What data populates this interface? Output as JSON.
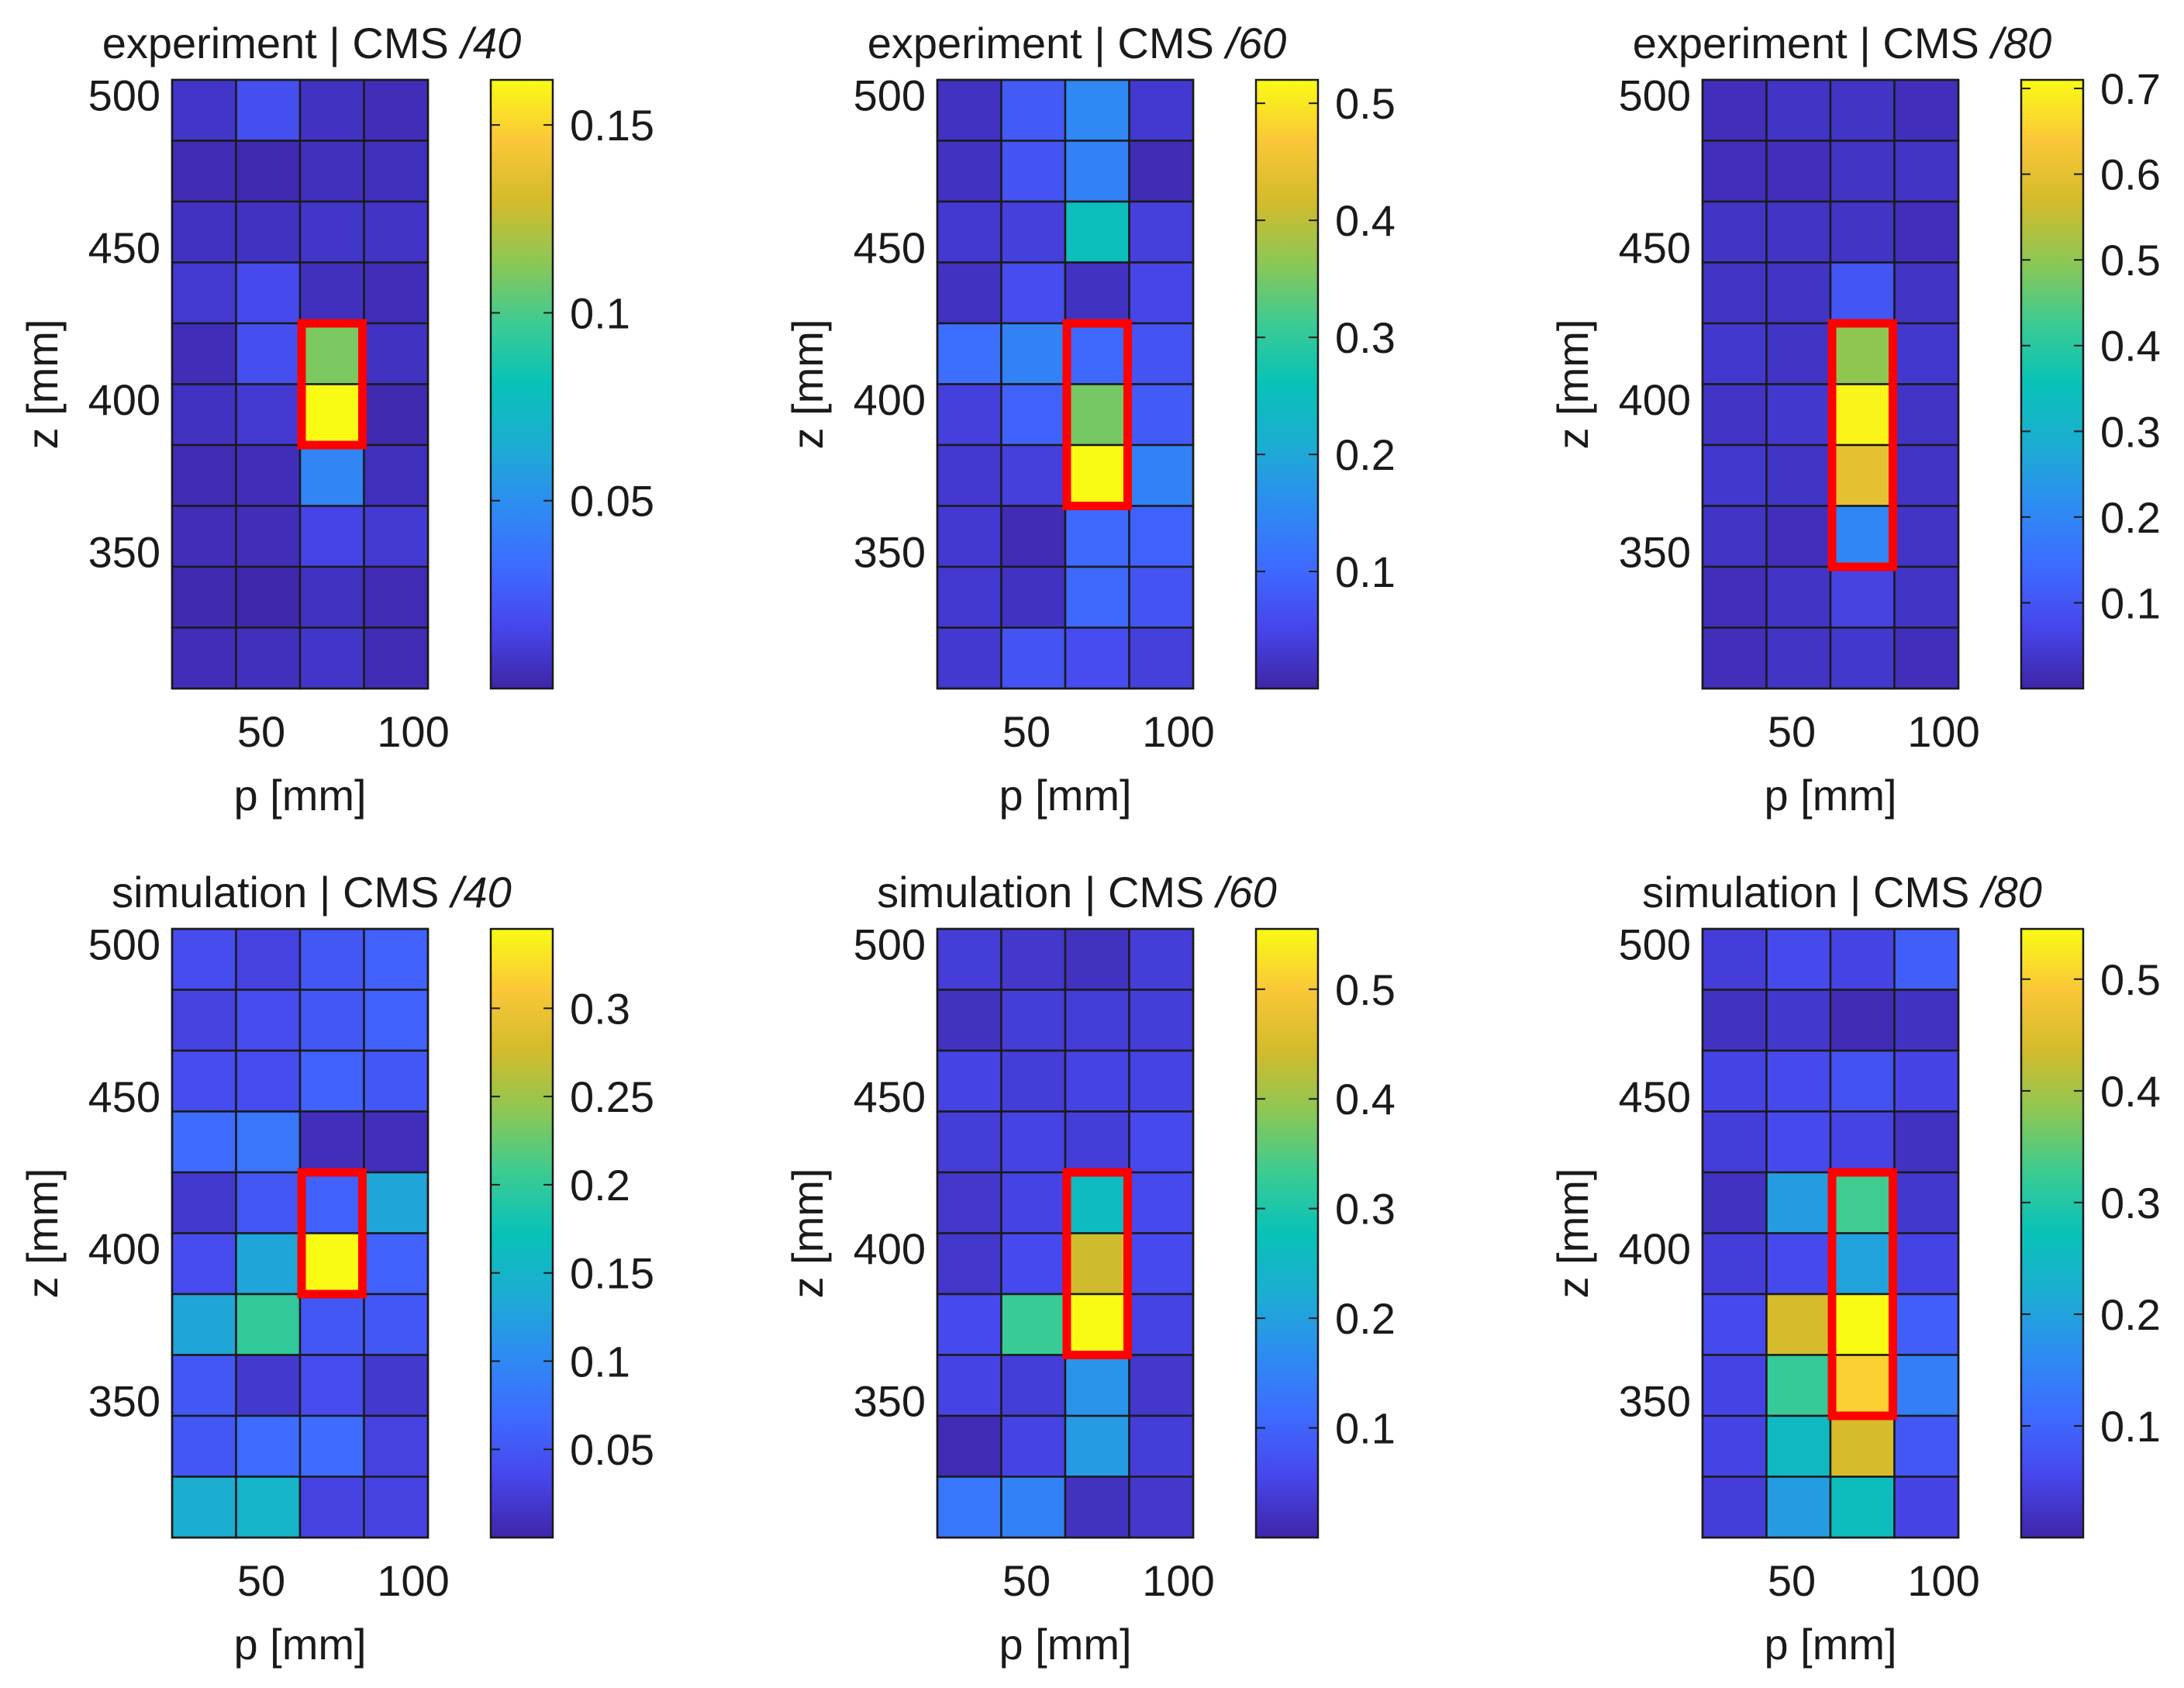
{
  "figure": {
    "colormap": [
      "#3e26a8",
      "#4746eb",
      "#3e6bff",
      "#2d8cf2",
      "#1cadd2",
      "#08c2b7",
      "#3ccb93",
      "#8cc754",
      "#d3bb2b",
      "#fac738",
      "#f9fb15"
    ],
    "highlight_color": "#ff0000",
    "grid_color": "#1a1a1a"
  },
  "chart_data": [
    {
      "type": "heatmap",
      "id": "exp40",
      "title": "experiment | CMS",
      "title_suffix": "/40",
      "xlabel": "p [mm]",
      "ylabel": "z [mm]",
      "x_ticks": [
        "50",
        "100"
      ],
      "y_ticks": [
        "500",
        "450",
        "400",
        "350"
      ],
      "cbar_ticks": [
        {
          "value": 0.15,
          "label": "0.15"
        },
        {
          "value": 0.1,
          "label": "0.1"
        },
        {
          "value": 0.05,
          "label": "0.05"
        }
      ],
      "clim": [
        0,
        0.162
      ],
      "highlight_rows": [
        4,
        5
      ],
      "values": [
        [
          0.008,
          0.02,
          0.006,
          0.004
        ],
        [
          0.003,
          0.002,
          0.005,
          0.005
        ],
        [
          0.006,
          0.006,
          0.008,
          0.007
        ],
        [
          0.01,
          0.018,
          0.005,
          0.004
        ],
        [
          0.004,
          0.02,
          0.11,
          0.006
        ],
        [
          0.006,
          0.01,
          0.162,
          0.002
        ],
        [
          0.003,
          0.004,
          0.045,
          0.005
        ],
        [
          0.004,
          0.004,
          0.015,
          0.01
        ],
        [
          0.002,
          0.001,
          0.006,
          0.003
        ],
        [
          0.004,
          0.005,
          0.008,
          0.003
        ]
      ]
    },
    {
      "type": "heatmap",
      "id": "exp60",
      "title": "experiment | CMS",
      "title_suffix": "/60",
      "xlabel": "p [mm]",
      "ylabel": "z [mm]",
      "x_ticks": [
        "50",
        "100"
      ],
      "y_ticks": [
        "500",
        "450",
        "400",
        "350"
      ],
      "cbar_ticks": [
        {
          "value": 0.5,
          "label": "0.5"
        },
        {
          "value": 0.4,
          "label": "0.4"
        },
        {
          "value": 0.3,
          "label": "0.3"
        },
        {
          "value": 0.2,
          "label": "0.2"
        },
        {
          "value": 0.1,
          "label": "0.1"
        }
      ],
      "clim": [
        0,
        0.52
      ],
      "highlight_rows": [
        4,
        5,
        6
      ],
      "values": [
        [
          0.02,
          0.08,
          0.15,
          0.03
        ],
        [
          0.02,
          0.07,
          0.14,
          0.01
        ],
        [
          0.03,
          0.04,
          0.25,
          0.04
        ],
        [
          0.02,
          0.06,
          0.02,
          0.05
        ],
        [
          0.11,
          0.14,
          0.1,
          0.07
        ],
        [
          0.04,
          0.09,
          0.35,
          0.08
        ],
        [
          0.03,
          0.04,
          0.52,
          0.14
        ],
        [
          0.03,
          0.01,
          0.1,
          0.09
        ],
        [
          0.03,
          0.02,
          0.1,
          0.07
        ],
        [
          0.03,
          0.07,
          0.06,
          0.04
        ]
      ]
    },
    {
      "type": "heatmap",
      "id": "exp80",
      "title": "experiment | CMS",
      "title_suffix": "/80",
      "xlabel": "p [mm]",
      "ylabel": "z [mm]",
      "x_ticks": [
        "50",
        "100"
      ],
      "y_ticks": [
        "500",
        "450",
        "400",
        "350"
      ],
      "cbar_ticks": [
        {
          "value": 0.7,
          "label": "0.7"
        },
        {
          "value": 0.6,
          "label": "0.6"
        },
        {
          "value": 0.5,
          "label": "0.5"
        },
        {
          "value": 0.4,
          "label": "0.4"
        },
        {
          "value": 0.3,
          "label": "0.3"
        },
        {
          "value": 0.2,
          "label": "0.2"
        },
        {
          "value": 0.1,
          "label": "0.1"
        }
      ],
      "clim": [
        0,
        0.71
      ],
      "highlight_rows": [
        4,
        5,
        6,
        7
      ],
      "values": [
        [
          0.02,
          0.03,
          0.03,
          0.02
        ],
        [
          0.02,
          0.02,
          0.03,
          0.03
        ],
        [
          0.03,
          0.03,
          0.03,
          0.02
        ],
        [
          0.03,
          0.03,
          0.1,
          0.03
        ],
        [
          0.04,
          0.03,
          0.5,
          0.04
        ],
        [
          0.03,
          0.04,
          0.7,
          0.03
        ],
        [
          0.04,
          0.03,
          0.6,
          0.03
        ],
        [
          0.03,
          0.02,
          0.2,
          0.03
        ],
        [
          0.02,
          0.03,
          0.06,
          0.03
        ],
        [
          0.02,
          0.03,
          0.04,
          0.02
        ]
      ]
    },
    {
      "type": "heatmap",
      "id": "sim40",
      "title": "simulation | CMS",
      "title_suffix": "/40",
      "xlabel": "p [mm]",
      "ylabel": "z [mm]",
      "x_ticks": [
        "50",
        "100"
      ],
      "y_ticks": [
        "500",
        "450",
        "400",
        "350"
      ],
      "cbar_ticks": [
        {
          "value": 0.3,
          "label": "0.3"
        },
        {
          "value": 0.25,
          "label": "0.25"
        },
        {
          "value": 0.2,
          "label": "0.2"
        },
        {
          "value": 0.15,
          "label": "0.15"
        },
        {
          "value": 0.1,
          "label": "0.1"
        },
        {
          "value": 0.05,
          "label": "0.05"
        }
      ],
      "clim": [
        0,
        0.345
      ],
      "highlight_rows": [
        4,
        5
      ],
      "values": [
        [
          0.04,
          0.03,
          0.05,
          0.06
        ],
        [
          0.03,
          0.04,
          0.05,
          0.06
        ],
        [
          0.04,
          0.04,
          0.06,
          0.05
        ],
        [
          0.07,
          0.08,
          0.01,
          0.01
        ],
        [
          0.02,
          0.05,
          0.06,
          0.13
        ],
        [
          0.04,
          0.13,
          0.345,
          0.06
        ],
        [
          0.13,
          0.2,
          0.05,
          0.05
        ],
        [
          0.05,
          0.02,
          0.04,
          0.02
        ],
        [
          0.05,
          0.07,
          0.07,
          0.03
        ],
        [
          0.14,
          0.15,
          0.03,
          0.03
        ]
      ]
    },
    {
      "type": "heatmap",
      "id": "sim60",
      "title": "simulation | CMS",
      "title_suffix": "/60",
      "xlabel": "p [mm]",
      "ylabel": "z [mm]",
      "x_ticks": [
        "50",
        "100"
      ],
      "y_ticks": [
        "500",
        "450",
        "400",
        "350"
      ],
      "cbar_ticks": [
        {
          "value": 0.5,
          "label": "0.5"
        },
        {
          "value": 0.4,
          "label": "0.4"
        },
        {
          "value": 0.3,
          "label": "0.3"
        },
        {
          "value": 0.2,
          "label": "0.2"
        },
        {
          "value": 0.1,
          "label": "0.1"
        }
      ],
      "clim": [
        0,
        0.555
      ],
      "highlight_rows": [
        4,
        5,
        6
      ],
      "values": [
        [
          0.04,
          0.03,
          0.02,
          0.04
        ],
        [
          0.02,
          0.04,
          0.04,
          0.04
        ],
        [
          0.05,
          0.04,
          0.05,
          0.05
        ],
        [
          0.04,
          0.05,
          0.04,
          0.06
        ],
        [
          0.03,
          0.05,
          0.26,
          0.06
        ],
        [
          0.03,
          0.06,
          0.44,
          0.06
        ],
        [
          0.06,
          0.33,
          0.555,
          0.05
        ],
        [
          0.05,
          0.04,
          0.18,
          0.03
        ],
        [
          0.01,
          0.05,
          0.19,
          0.04
        ],
        [
          0.13,
          0.15,
          0.02,
          0.03
        ]
      ]
    },
    {
      "type": "heatmap",
      "id": "sim80",
      "title": "simulation | CMS",
      "title_suffix": "/80",
      "xlabel": "p [mm]",
      "ylabel": "z [mm]",
      "x_ticks": [
        "50",
        "100"
      ],
      "y_ticks": [
        "500",
        "450",
        "400",
        "350"
      ],
      "cbar_ticks": [
        {
          "value": 0.5,
          "label": "0.5"
        },
        {
          "value": 0.4,
          "label": "0.4"
        },
        {
          "value": 0.3,
          "label": "0.3"
        },
        {
          "value": 0.2,
          "label": "0.2"
        },
        {
          "value": 0.1,
          "label": "0.1"
        }
      ],
      "clim": [
        0,
        0.545
      ],
      "highlight_rows": [
        4,
        5,
        6,
        7
      ],
      "values": [
        [
          0.04,
          0.06,
          0.05,
          0.09
        ],
        [
          0.02,
          0.03,
          0.01,
          0.02
        ],
        [
          0.05,
          0.06,
          0.07,
          0.05
        ],
        [
          0.04,
          0.06,
          0.05,
          0.02
        ],
        [
          0.02,
          0.19,
          0.33,
          0.03
        ],
        [
          0.04,
          0.06,
          0.2,
          0.05
        ],
        [
          0.06,
          0.44,
          0.545,
          0.09
        ],
        [
          0.05,
          0.32,
          0.5,
          0.14
        ],
        [
          0.05,
          0.25,
          0.44,
          0.08
        ],
        [
          0.04,
          0.19,
          0.26,
          0.05
        ]
      ]
    }
  ]
}
